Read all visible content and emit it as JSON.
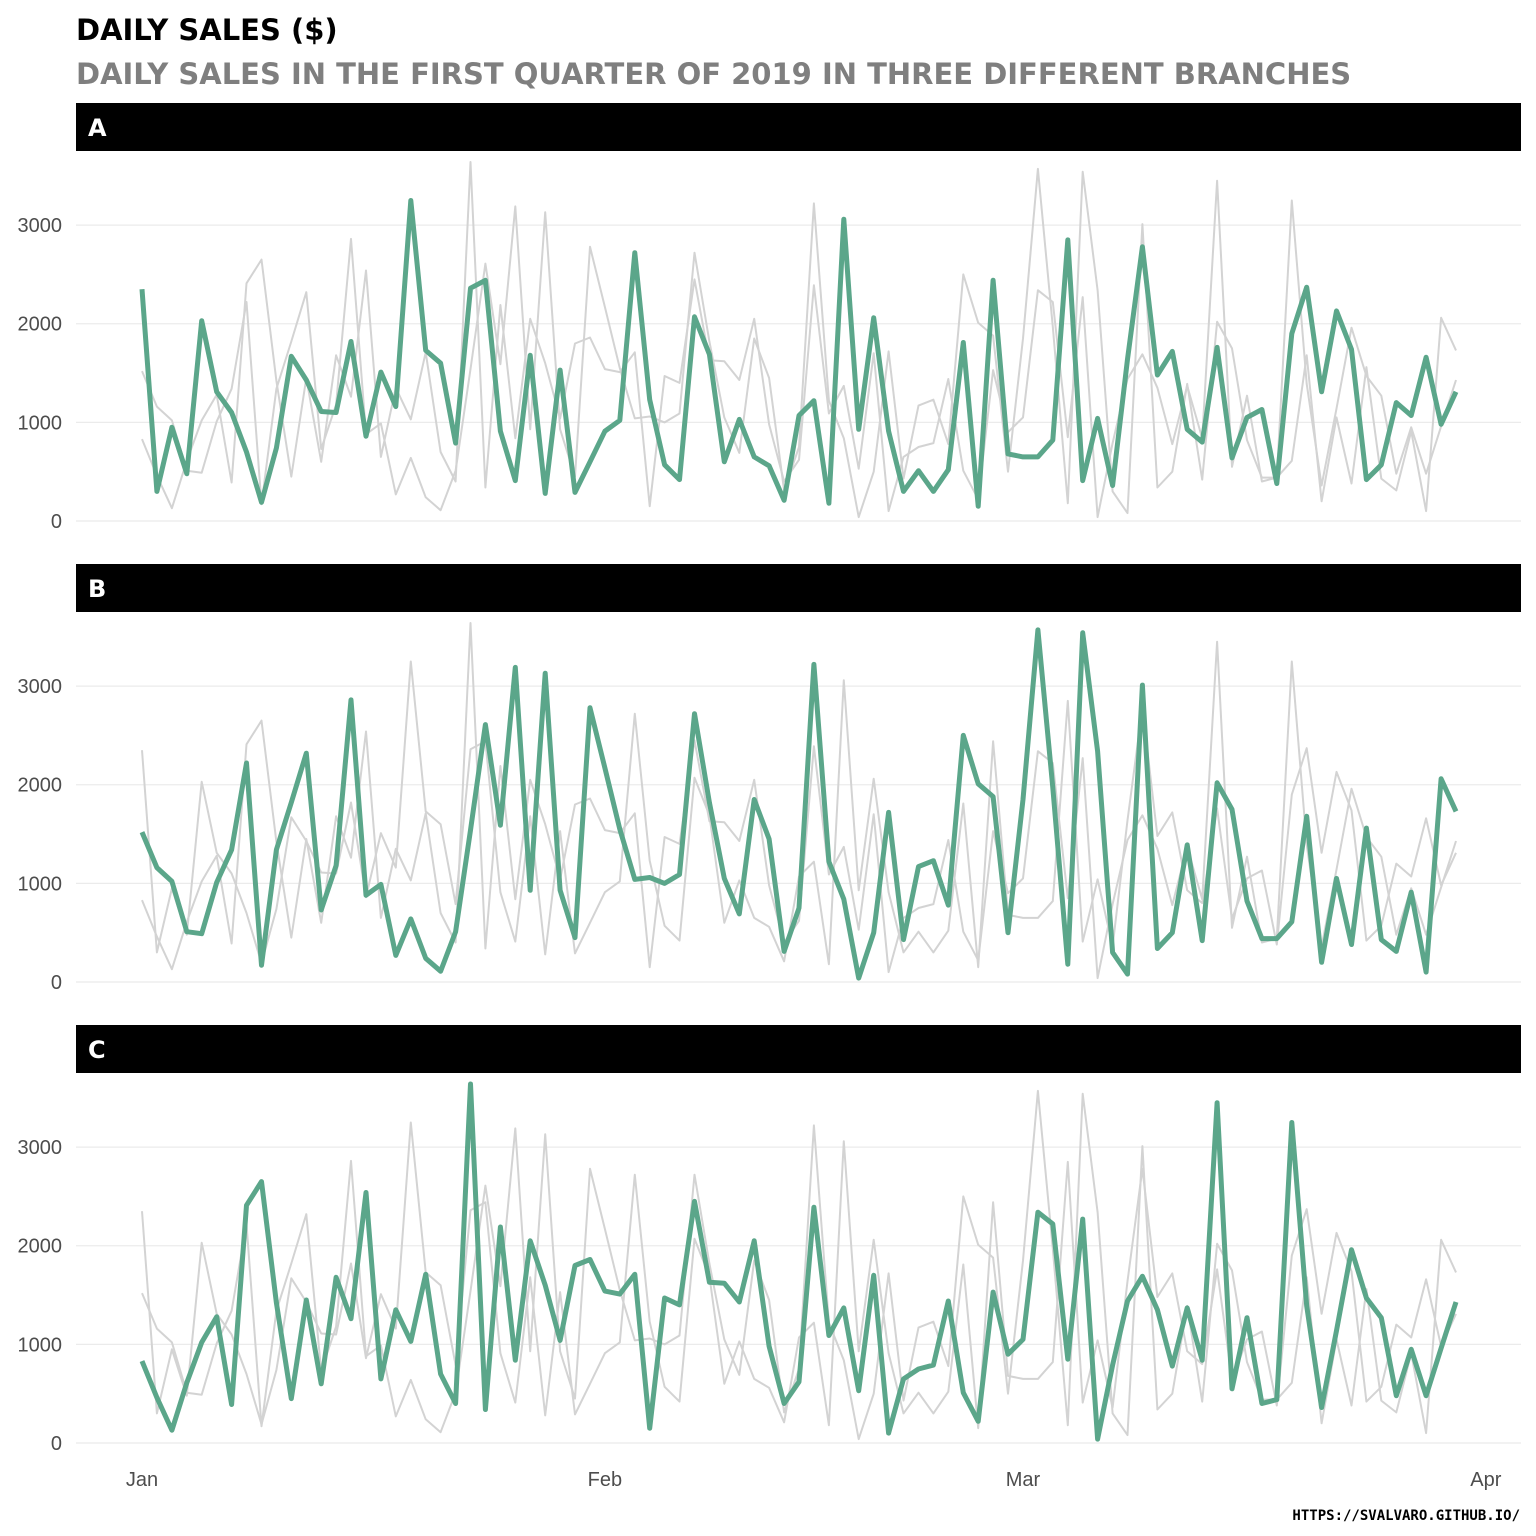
{
  "chart_data": {
    "type": "line",
    "title": "DAILY SALES ($)",
    "subtitle": "DAILY SALES IN THE FIRST QUARTER OF 2019 IN THREE DIFFERENT BRANCHES",
    "caption": "HTTPS://SVALVARO.GITHUB.IO/",
    "x_range": [
      "2019-01-01",
      "2019-03-30"
    ],
    "x_ticks": [
      "Jan",
      "Feb",
      "Mar",
      "Apr"
    ],
    "x_tick_dates": [
      "2019-01-01",
      "2019-02-01",
      "2019-03-01",
      "2019-04-01"
    ],
    "y_ticks": [
      0,
      1000,
      2000,
      3000
    ],
    "ylim": [
      0,
      3650
    ],
    "grid": true,
    "highlight_color": "#5ba68a",
    "background_series_color": "#d3d3d3",
    "strip_color": "#000000",
    "panels": [
      {
        "label": "A",
        "highlight": "A"
      },
      {
        "label": "B",
        "highlight": "B"
      },
      {
        "label": "C",
        "highlight": "C"
      }
    ],
    "series": [
      {
        "name": "A",
        "values": [
          2350,
          300,
          950,
          480,
          2030,
          1310,
          1100,
          700,
          190,
          740,
          1670,
          1430,
          1110,
          1100,
          1820,
          860,
          1510,
          1160,
          3250,
          1730,
          1600,
          790,
          2360,
          2440,
          910,
          410,
          1680,
          280,
          1530,
          290,
          600,
          910,
          1020,
          2720,
          1230,
          570,
          420,
          2070,
          1690,
          600,
          1030,
          650,
          560,
          210,
          1070,
          1220,
          180,
          3060,
          930,
          2060,
          910,
          300,
          510,
          300,
          520,
          1810,
          150,
          2440,
          680,
          650,
          650,
          820,
          2850,
          410,
          1040,
          360,
          1640,
          2780,
          1480,
          1720,
          930,
          800,
          1760,
          640,
          1050,
          1130,
          380,
          1900,
          2370,
          1310,
          2130,
          1740,
          420,
          570,
          1200,
          1070,
          1660,
          980,
          1310
        ]
      },
      {
        "name": "B",
        "values": [
          1520,
          1160,
          1020,
          510,
          490,
          1010,
          1340,
          2220,
          170,
          1340,
          1820,
          2320,
          730,
          1180,
          2860,
          880,
          990,
          270,
          640,
          240,
          110,
          510,
          1540,
          2610,
          1590,
          3190,
          930,
          3130,
          930,
          450,
          2780,
          2170,
          1550,
          1040,
          1060,
          1000,
          1090,
          2720,
          1820,
          1050,
          690,
          1850,
          1450,
          310,
          750,
          3220,
          1220,
          840,
          40,
          500,
          1720,
          430,
          1170,
          1230,
          780,
          2500,
          2010,
          1880,
          500,
          1850,
          3570,
          1970,
          180,
          3540,
          2340,
          300,
          80,
          3010,
          340,
          500,
          1390,
          420,
          2020,
          1750,
          820,
          440,
          440,
          610,
          1680,
          200,
          1050,
          380,
          1560,
          430,
          310,
          910,
          100,
          2060,
          1730
        ]
      },
      {
        "name": "C",
        "values": [
          830,
          460,
          130,
          610,
          1020,
          1280,
          390,
          2410,
          2650,
          1420,
          450,
          1450,
          600,
          1680,
          1260,
          2540,
          650,
          1350,
          1030,
          1710,
          700,
          400,
          3640,
          340,
          2190,
          840,
          2050,
          1600,
          1040,
          1800,
          1860,
          1540,
          1510,
          1710,
          150,
          1470,
          1400,
          2450,
          1630,
          1620,
          1430,
          2050,
          980,
          400,
          620,
          2390,
          1090,
          1370,
          530,
          1700,
          100,
          650,
          750,
          790,
          1440,
          510,
          220,
          1530,
          900,
          1050,
          2340,
          2220,
          850,
          2270,
          40,
          790,
          1440,
          1690,
          1350,
          780,
          1370,
          840,
          3450,
          550,
          1270,
          400,
          440,
          3250,
          1390,
          360,
          1140,
          1960,
          1470,
          1270,
          480,
          950,
          480,
          960,
          1430
        ]
      }
    ]
  }
}
